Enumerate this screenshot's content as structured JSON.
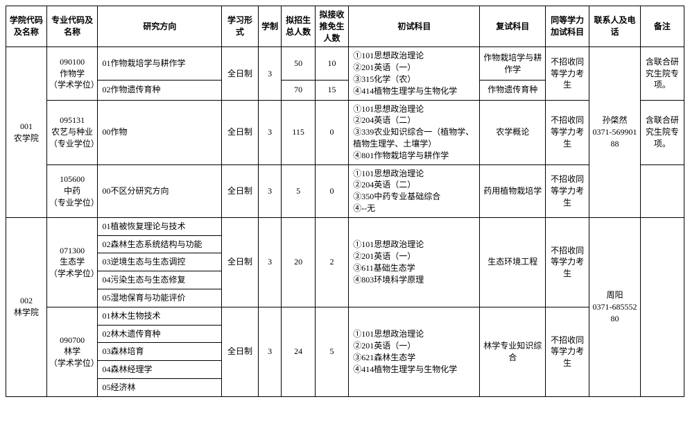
{
  "headers": {
    "col_code": "学院代码及名称",
    "col_major": "专业代码及名称",
    "col_dir": "研究方向",
    "col_form": "学习形式",
    "col_year": "学制",
    "col_plan": "拟招生总人数",
    "col_rec": "拟接收推免生人数",
    "col_exam1": "初试科目",
    "col_exam2": "复试科目",
    "col_eq": "同等学力加试科目",
    "col_contact": "联系人及电话",
    "col_note": "备注"
  },
  "college1": {
    "name": "001\n农学院",
    "major1": {
      "name": "090100\n作物学\n（学术学位）",
      "dir1": "01作物栽培学与耕作学",
      "dir2": "02作物遗传育种",
      "form": "全日制",
      "year": "3",
      "plan1": "50",
      "rec1": "10",
      "plan2": "70",
      "rec2": "15",
      "exam1": "①101思想政治理论\n②201英语（一）\n③315化学（农）\n④414植物生理学与生物化学",
      "exam2a": "作物栽培学与耕作学",
      "exam2b": "作物遗传育种",
      "eq": "不招收同等学力考生",
      "note": "含联合研究生院专项。"
    },
    "major2": {
      "name": "095131\n农艺与种业\n（专业学位）",
      "dir1": "00作物",
      "form": "全日制",
      "year": "3",
      "plan": "115",
      "rec": "0",
      "exam1": "①101思想政治理论\n②204英语（二）\n③339农业知识综合一（植物学、植物生理学、土壤学）\n④801作物栽培学与耕作学",
      "exam2": "农学概论",
      "eq": "不招收同等学力考生",
      "note": "含联合研究生院专项。"
    },
    "major3": {
      "name": "105600\n中药\n（专业学位）",
      "dir1": "00不区分研究方向",
      "form": "全日制",
      "year": "3",
      "plan": "5",
      "rec": "0",
      "exam1": "①101思想政治理论\n②204英语（二）\n③350中药专业基础综合\n④--无",
      "exam2": "药用植物栽培学",
      "eq": "不招收同等学力考生"
    },
    "contact": "孙棨然\n0371-56990188"
  },
  "college2": {
    "name": "002\n林学院",
    "major1": {
      "name": "071300\n生态学\n（学术学位）",
      "dir1": "01植被恢复理论与技术",
      "dir2": "02森林生态系统结构与功能",
      "dir3": "03逆境生态与生态调控",
      "dir4": "04污染生态与生态修复",
      "dir5": "05湿地保育与功能评价",
      "form": "全日制",
      "year": "3",
      "plan": "20",
      "rec": "2",
      "exam1": "①101思想政治理论\n②201英语（一）\n③611基础生态学\n④803环境科学原理",
      "exam2": "生态环境工程",
      "eq": "不招收同等学力考生"
    },
    "major2": {
      "name": "090700\n林学\n（学术学位）",
      "dir1": "01林木生物技术",
      "dir2": "02林木遗传育种",
      "dir3": "03森林培育",
      "dir4": "04森林经理学",
      "dir5": "05经济林",
      "form": "全日制",
      "year": "3",
      "plan": "24",
      "rec": "5",
      "exam1": "①101思想政治理论\n②201英语（一）\n③621森林生态学\n④414植物生理学与生物化学",
      "exam2": "林学专业知识综合",
      "eq": "不招收同等学力考生"
    },
    "contact": "周阳\n0371-68555280"
  }
}
